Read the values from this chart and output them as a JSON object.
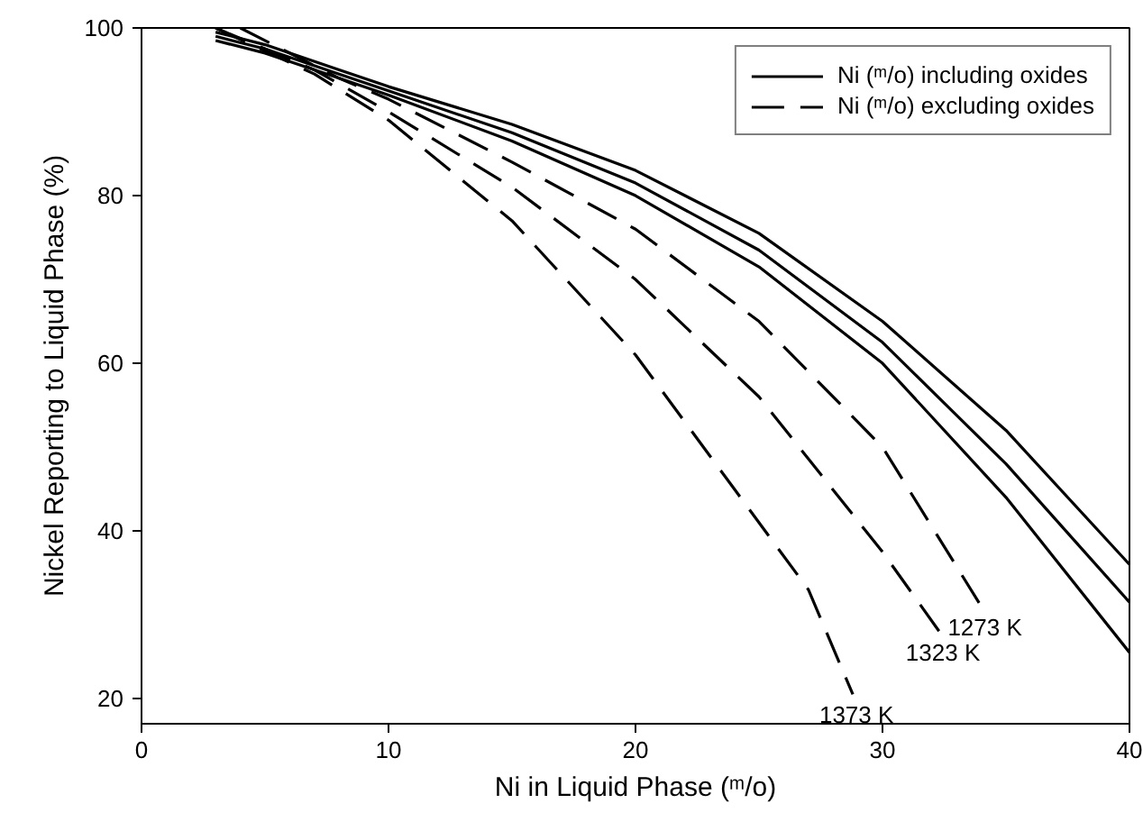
{
  "chart_data": {
    "type": "line",
    "xlabel": "Ni in Liquid Phase (ᵐ/o)",
    "ylabel": "Nickel Reporting to Liquid Phase (%)",
    "xlim": [
      0,
      40
    ],
    "ylim": [
      17,
      100
    ],
    "xticks": [
      0,
      10,
      20,
      30,
      40
    ],
    "yticks": [
      20,
      40,
      60,
      80,
      100
    ],
    "grid": false,
    "legend": "top right",
    "marker": "none",
    "series": [
      {
        "name": "Ni (ᵐ/o) including oxides",
        "color": "#000000",
        "line_style": "solid",
        "x": [
          3,
          5,
          8,
          10,
          15,
          20,
          25,
          30,
          35,
          40
        ],
        "values": [
          99.5,
          98,
          95,
          93,
          88.5,
          83,
          75.5,
          65,
          52,
          36
        ]
      },
      {
        "color": "#000000",
        "line_style": "solid",
        "x": [
          3,
          5,
          8,
          10,
          15,
          20,
          25,
          30,
          35,
          40
        ],
        "values": [
          99,
          97.5,
          94.5,
          92.5,
          87.5,
          81.5,
          73.5,
          62.5,
          48,
          31.5
        ]
      },
      {
        "color": "#000000",
        "line_style": "solid",
        "x": [
          3,
          5,
          8,
          10,
          15,
          20,
          25,
          30,
          35,
          40
        ],
        "values": [
          98.5,
          97,
          94,
          92,
          86.5,
          80,
          71.5,
          60,
          44,
          25.5
        ]
      },
      {
        "name": "Ni (ᵐ/o) excluding oxides",
        "color": "#000000",
        "line_style": "dashed",
        "x": [
          4,
          8,
          10,
          15,
          20,
          25,
          30,
          34
        ],
        "values": [
          100,
          94,
          91.5,
          84,
          76,
          65,
          50,
          31
        ]
      },
      {
        "color": "#000000",
        "line_style": "dashed",
        "x": [
          3,
          7,
          10,
          15,
          20,
          25,
          30,
          32.3
        ],
        "values": [
          100,
          95,
          90,
          81,
          70,
          56,
          37.5,
          28
        ]
      },
      {
        "color": "#000000",
        "line_style": "dashed",
        "x": [
          3,
          7,
          10,
          15,
          20,
          24,
          27,
          28.8
        ],
        "values": [
          100,
          94.5,
          89,
          77,
          61,
          45,
          33,
          20.5
        ]
      }
    ],
    "annotations": [
      {
        "text": "1273 K",
        "x": 34,
        "y": 31
      },
      {
        "text": "1323 K",
        "x": 32.3,
        "y": 28
      },
      {
        "text": "1373 K",
        "x": 28.8,
        "y": 20.5
      }
    ]
  }
}
